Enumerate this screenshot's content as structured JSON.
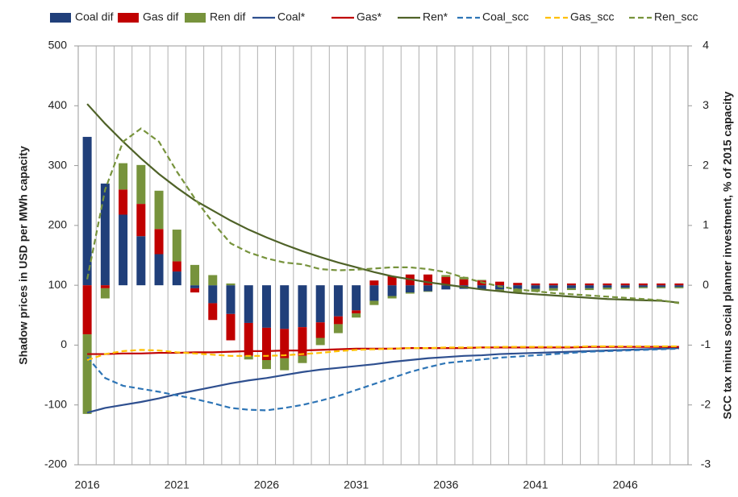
{
  "chart_data": {
    "type": "combo",
    "categories": [
      "2016",
      null,
      null,
      null,
      null,
      "2021",
      null,
      null,
      null,
      null,
      "2026",
      null,
      null,
      null,
      null,
      "2031",
      null,
      null,
      null,
      null,
      "2036",
      null,
      null,
      null,
      null,
      "2041",
      null,
      null,
      null,
      null,
      "2046",
      null,
      null,
      null
    ],
    "y_label": "Shadow prices in USD per MWh capacity",
    "y2_label": "SCC tax minus social planner investment, % of 2015 capacity",
    "ylim": [
      -200,
      500
    ],
    "yticks": [
      -200,
      -100,
      0,
      100,
      200,
      300,
      400,
      500
    ],
    "y2lim": [
      -3,
      4
    ],
    "y2ticks": [
      -3,
      -2,
      -1,
      0,
      1,
      2,
      3,
      4
    ],
    "grid": "x",
    "series": [
      {
        "name": "Coal dif",
        "type": "bar",
        "axis": "y2",
        "color": "#203f7a",
        "values": [
          2.48,
          1.7,
          1.18,
          0.82,
          0.52,
          0.23,
          -0.05,
          -0.3,
          -0.48,
          -0.63,
          -0.71,
          -0.73,
          -0.7,
          -0.62,
          -0.52,
          -0.42,
          -0.26,
          -0.18,
          -0.12,
          -0.1,
          -0.07,
          -0.06,
          -0.07,
          -0.07,
          -0.06,
          -0.06,
          -0.05,
          -0.05,
          -0.05,
          -0.04,
          -0.04,
          -0.03,
          -0.03,
          -0.03
        ]
      },
      {
        "name": "Gas dif",
        "type": "bar",
        "axis": "y2",
        "color": "#c00000",
        "values": [
          -0.82,
          -0.05,
          0.42,
          0.54,
          0.42,
          0.17,
          -0.07,
          -0.28,
          -0.44,
          -0.55,
          -0.54,
          -0.49,
          -0.48,
          -0.26,
          -0.13,
          -0.05,
          0.08,
          0.15,
          0.18,
          0.18,
          0.14,
          0.1,
          0.08,
          0.06,
          0.04,
          0.03,
          0.03,
          0.03,
          0.03,
          0.03,
          0.03,
          0.03,
          0.03,
          0.03
        ]
      },
      {
        "name": "Ren dif",
        "type": "bar",
        "axis": "y2",
        "color": "#77933c",
        "values": [
          -1.33,
          -0.17,
          0.44,
          0.65,
          0.64,
          0.53,
          0.34,
          0.17,
          0.03,
          -0.06,
          -0.15,
          -0.2,
          -0.12,
          -0.12,
          -0.15,
          -0.07,
          -0.07,
          -0.04,
          -0.02,
          -0.01,
          0.03,
          0.04,
          0.01,
          -0.03,
          -0.06,
          -0.05,
          -0.04,
          -0.03,
          -0.03,
          -0.03,
          -0.02,
          -0.02,
          -0.02,
          -0.02
        ]
      },
      {
        "name": "Coal*",
        "type": "line",
        "color": "#2e4f8f",
        "dashed": false,
        "values": [
          -113,
          -105,
          -100,
          -95,
          -89,
          -82,
          -76,
          -70,
          -64,
          -59,
          -55,
          -50,
          -45,
          -41,
          -38,
          -35,
          -32,
          -28,
          -25,
          -22,
          -20,
          -18,
          -17,
          -15,
          -14,
          -13,
          -12,
          -11,
          -10,
          -9,
          -8,
          -7,
          -6,
          -5
        ]
      },
      {
        "name": "Gas*",
        "type": "line",
        "color": "#c00000",
        "dashed": false,
        "values": [
          -15,
          -15,
          -14,
          -14,
          -13,
          -13,
          -12,
          -12,
          -11,
          -10,
          -10,
          -9,
          -9,
          -8,
          -7,
          -6,
          -6,
          -6,
          -5,
          -5,
          -5,
          -5,
          -4,
          -4,
          -4,
          -4,
          -4,
          -4,
          -3,
          -3,
          -3,
          -3,
          -3,
          -3
        ]
      },
      {
        "name": "Ren*",
        "type": "line",
        "color": "#4f6228",
        "dashed": false,
        "values": [
          403,
          370,
          340,
          312,
          286,
          263,
          242,
          225,
          208,
          193,
          180,
          168,
          157,
          147,
          138,
          130,
          122,
          115,
          110,
          105,
          101,
          97,
          93,
          90,
          87,
          85,
          83,
          81,
          79,
          77,
          76,
          75,
          74,
          71
        ]
      },
      {
        "name": "Coal_scc",
        "type": "line",
        "color": "#2e75b6",
        "dashed": true,
        "values": [
          -20,
          -55,
          -68,
          -73,
          -78,
          -84,
          -90,
          -97,
          -105,
          -108,
          -109,
          -105,
          -100,
          -93,
          -85,
          -75,
          -65,
          -55,
          -45,
          -37,
          -30,
          -27,
          -24,
          -21,
          -19,
          -17,
          -15,
          -13,
          -11,
          -10,
          -9,
          -8,
          -7,
          -6
        ]
      },
      {
        "name": "Gas_scc",
        "type": "line",
        "color": "#ffc000",
        "dashed": true,
        "values": [
          -25,
          -15,
          -10,
          -8,
          -9,
          -12,
          -14,
          -16,
          -18,
          -18,
          -18,
          -17,
          -15,
          -13,
          -10,
          -8,
          -7,
          -6,
          -5,
          -5,
          -4,
          -4,
          -4,
          -3,
          -3,
          -3,
          -3,
          -3,
          -2,
          -2,
          -2,
          -2,
          -2,
          -2
        ]
      },
      {
        "name": "Ren_scc",
        "type": "line",
        "color": "#77933c",
        "dashed": true,
        "values": [
          110,
          260,
          340,
          362,
          340,
          290,
          245,
          205,
          170,
          155,
          145,
          138,
          135,
          127,
          125,
          126,
          128,
          130,
          130,
          127,
          122,
          113,
          105,
          98,
          93,
          90,
          87,
          85,
          83,
          81,
          79,
          77,
          75,
          70
        ]
      }
    ]
  }
}
